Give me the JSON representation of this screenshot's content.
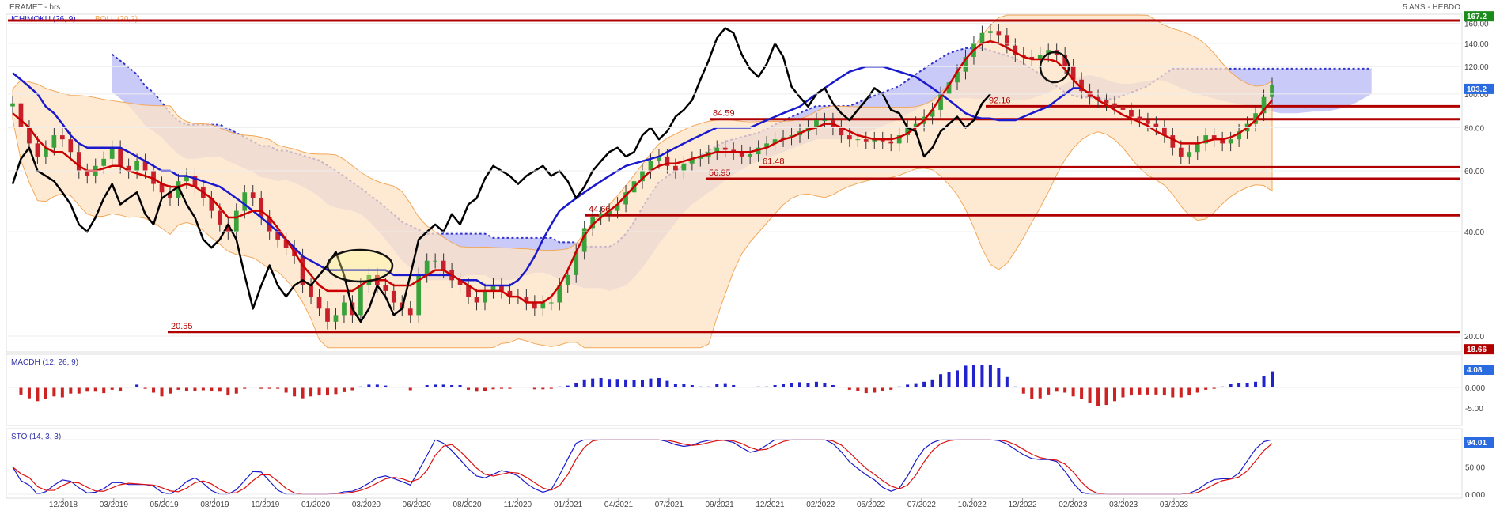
{
  "header": {
    "title": "ERAMET - brs",
    "period": "5 ANS - HEBDO"
  },
  "colors": {
    "bull": "#3aa23a",
    "bear": "#c8202a",
    "tenkan": "#cc0000",
    "kijun": "#1a1acc",
    "chikou": "#000000",
    "cloud": "#b3b3f5",
    "cloud_edge": "#3333cc",
    "boll_fill": "#fde3c4",
    "boll_edge": "#f2a85a",
    "hline": "#b00000",
    "macd_pos": "#2222cc",
    "macd_neg": "#cc2222",
    "sto_k": "#1a1acc",
    "sto_d": "#dd1111",
    "badge_green": "#1a8a1a",
    "badge_blue": "#2a6be0",
    "badge_red": "#b00000"
  },
  "chart_data": [
    {
      "type": "candlestick",
      "legend": {
        "ichimoku": "ICHIMOKU (26, 9)",
        "boll": "BOLL (20,2)"
      },
      "x_ticks": [
        "12/2018",
        "03/2019",
        "05/2019",
        "08/2019",
        "10/2019",
        "01/2020",
        "03/2020",
        "06/2020",
        "08/2020",
        "11/2020",
        "01/2021",
        "04/2021",
        "07/2021",
        "09/2021",
        "12/2021",
        "02/2022",
        "05/2022",
        "07/2022",
        "10/2022",
        "12/2022",
        "02/2023",
        "03/2023",
        "03/2023"
      ],
      "y_ticks": [
        "160.00",
        "140.00",
        "120.00",
        "100.00",
        "80.00",
        "60.00",
        "40.00",
        "20.00"
      ],
      "ylim": [
        18,
        170
      ],
      "scale": "log",
      "last_price": "103.2",
      "high_badge": "167.2",
      "low_badge": "18.66",
      "levels": [
        {
          "label": "20.55",
          "value": 20.55
        },
        {
          "label": "44.66",
          "value": 44.66
        },
        {
          "label": "56.95",
          "value": 56.95
        },
        {
          "label": "61.48",
          "value": 61.48
        },
        {
          "label": "84.59",
          "value": 84.59
        },
        {
          "label": "92.16",
          "value": 92.16
        },
        {
          "label": "",
          "value": 163
        }
      ],
      "series": {
        "close_weekly": [
          94,
          80,
          72,
          66,
          70,
          76,
          74,
          68,
          60,
          58,
          62,
          65,
          70,
          62,
          60,
          64,
          60,
          55,
          52,
          50,
          56,
          58,
          54,
          50,
          46,
          42,
          40,
          46,
          52,
          50,
          44,
          40,
          38,
          36,
          34,
          28,
          26,
          24,
          22,
          23,
          25,
          23,
          28,
          30,
          28,
          27,
          25,
          24,
          23,
          30,
          33,
          33,
          31,
          29,
          28,
          26,
          25,
          27,
          28,
          27,
          26,
          26,
          25,
          24,
          25,
          25,
          28,
          30,
          35,
          41,
          44,
          45,
          46,
          48,
          52,
          56,
          60,
          64,
          66,
          62,
          60,
          63,
          65,
          66,
          68,
          70,
          69,
          68,
          66,
          67,
          70,
          72,
          74,
          75,
          76,
          78,
          80,
          84,
          84,
          80,
          76,
          74,
          74,
          73,
          74,
          73,
          72,
          76,
          80,
          82,
          86,
          90,
          100,
          108,
          116,
          128,
          140,
          150,
          152,
          148,
          138,
          130,
          128,
          126,
          130,
          134,
          130,
          120,
          110,
          102,
          98,
          96,
          94,
          92,
          90,
          86,
          84,
          82,
          80,
          76,
          70,
          66,
          68,
          72,
          76,
          74,
          72,
          74,
          78,
          82,
          88,
          98,
          106
        ],
        "chikou": [
          55,
          65,
          70,
          60,
          58,
          56,
          52,
          48,
          42,
          40,
          44,
          50,
          55,
          48,
          50,
          52,
          45,
          42,
          50,
          52,
          54,
          48,
          44,
          38,
          36,
          38,
          42,
          38,
          30,
          24,
          28,
          32,
          28,
          26,
          28,
          29,
          28,
          30,
          32,
          35,
          30,
          24,
          22,
          24,
          28,
          26,
          23,
          24,
          30,
          38,
          40,
          42,
          40,
          45,
          42,
          48,
          50,
          57,
          62,
          60,
          58,
          55,
          58,
          60,
          62,
          58,
          60,
          56,
          50,
          54,
          60,
          64,
          68,
          70,
          66,
          68,
          76,
          80,
          74,
          78,
          86,
          90,
          96,
          110,
          125,
          145,
          155,
          150,
          130,
          118,
          112,
          122,
          140,
          128,
          105,
          98,
          92,
          100,
          104,
          94,
          88,
          84,
          90,
          96,
          104,
          100,
          90,
          88,
          80,
          78,
          66,
          70,
          78,
          82,
          86,
          80,
          84,
          94,
          100
        ],
        "tenkan": [
          88,
          84,
          80,
          74,
          70,
          68,
          68,
          65,
          62,
          60,
          60,
          61,
          62,
          62,
          60,
          59,
          58,
          57,
          55,
          54,
          54,
          55,
          54,
          52,
          50,
          47,
          44,
          44,
          45,
          46,
          46,
          44,
          41,
          38,
          35,
          32,
          30,
          28,
          27,
          27,
          27,
          27,
          28,
          29,
          29,
          29,
          28,
          28,
          28,
          29,
          30,
          31,
          31,
          30,
          29,
          28,
          27,
          27,
          27,
          27,
          26,
          26,
          25,
          25,
          25,
          26,
          28,
          31,
          35,
          39,
          42,
          44,
          46,
          48,
          51,
          54,
          57,
          60,
          62,
          63,
          63,
          64,
          65,
          66,
          67,
          68,
          68,
          68,
          68,
          68,
          69,
          70,
          72,
          74,
          75,
          77,
          79,
          80,
          82,
          82,
          80,
          78,
          76,
          75,
          74,
          74,
          74,
          75,
          77,
          80,
          84,
          90,
          98,
          106,
          116,
          126,
          134,
          140,
          142,
          140,
          136,
          132,
          128,
          126,
          126,
          126,
          124,
          118,
          110,
          104,
          100,
          96,
          93,
          90,
          87,
          85,
          83,
          81,
          78,
          76,
          74,
          72,
          72,
          72,
          73,
          74,
          74,
          75,
          77,
          80,
          84,
          90,
          96
        ],
        "kijun": [
          115,
          110,
          105,
          100,
          92,
          88,
          82,
          76,
          72,
          70,
          70,
          70,
          70,
          70,
          68,
          66,
          64,
          62,
          60,
          60,
          58,
          58,
          57,
          56,
          55,
          54,
          52,
          50,
          48,
          46,
          44,
          42,
          40,
          38,
          36,
          34,
          33,
          32,
          31,
          31,
          31,
          31,
          31,
          31,
          31,
          31,
          30,
          30,
          30,
          30,
          30,
          30,
          30,
          30,
          29,
          29,
          29,
          28,
          28,
          28,
          28,
          29,
          31,
          34,
          38,
          42,
          46,
          48,
          50,
          52,
          54,
          56,
          58,
          60,
          62,
          63,
          64,
          65,
          66,
          68,
          70,
          72,
          74,
          76,
          78,
          80,
          80,
          80,
          80,
          80,
          82,
          84,
          86,
          88,
          90,
          92,
          96,
          100,
          104,
          108,
          112,
          116,
          118,
          120,
          120,
          120,
          118,
          116,
          114,
          112,
          108,
          104,
          100,
          96,
          92,
          88,
          86,
          85,
          85,
          84,
          84,
          84,
          86,
          88,
          90,
          92,
          96,
          100,
          104,
          104
        ]
      }
    },
    {
      "type": "bar",
      "title": "MACDH (12, 26, 9)",
      "y_ticks": [
        "0.000",
        "-5.00"
      ],
      "last_value": "4.08"
    },
    {
      "type": "line",
      "title": "STO (14, 3, 3)",
      "y_ticks": [
        "100.00",
        "50.00",
        "0.000"
      ],
      "last_value": "94.01"
    }
  ]
}
